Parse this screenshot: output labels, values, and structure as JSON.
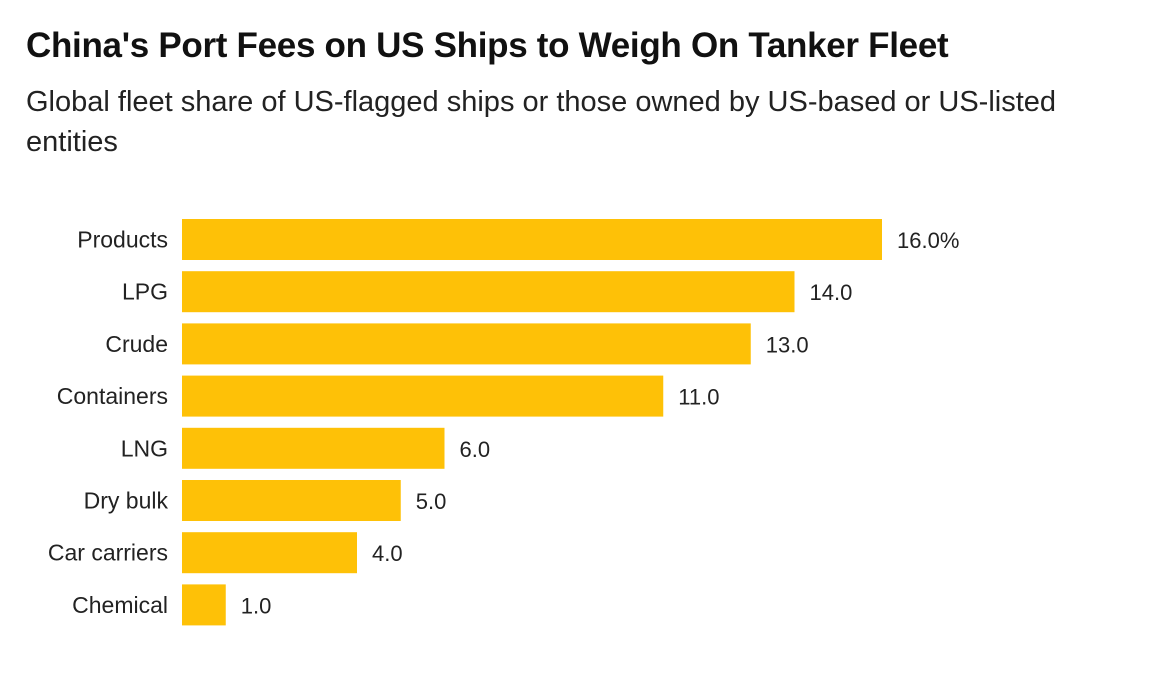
{
  "chart_data": {
    "type": "bar",
    "orientation": "horizontal",
    "title": "China's Port Fees on US Ships to Weigh On Tanker Fleet",
    "subtitle": "Global fleet share of US-flagged ships or those owned by US-based or US-listed entities",
    "categories": [
      "Products",
      "LPG",
      "Crude",
      "Containers",
      "LNG",
      "Dry bulk",
      "Car carriers",
      "Chemical"
    ],
    "values": [
      16.0,
      14.0,
      13.0,
      11.0,
      6.0,
      5.0,
      4.0,
      1.0
    ],
    "value_labels": [
      "16.0%",
      "14.0",
      "13.0",
      "11.0",
      "6.0",
      "5.0",
      "4.0",
      "1.0"
    ],
    "unit": "%",
    "xlim": [
      0,
      16
    ],
    "bar_color": "#fec107",
    "grid": false,
    "legend": "none"
  }
}
